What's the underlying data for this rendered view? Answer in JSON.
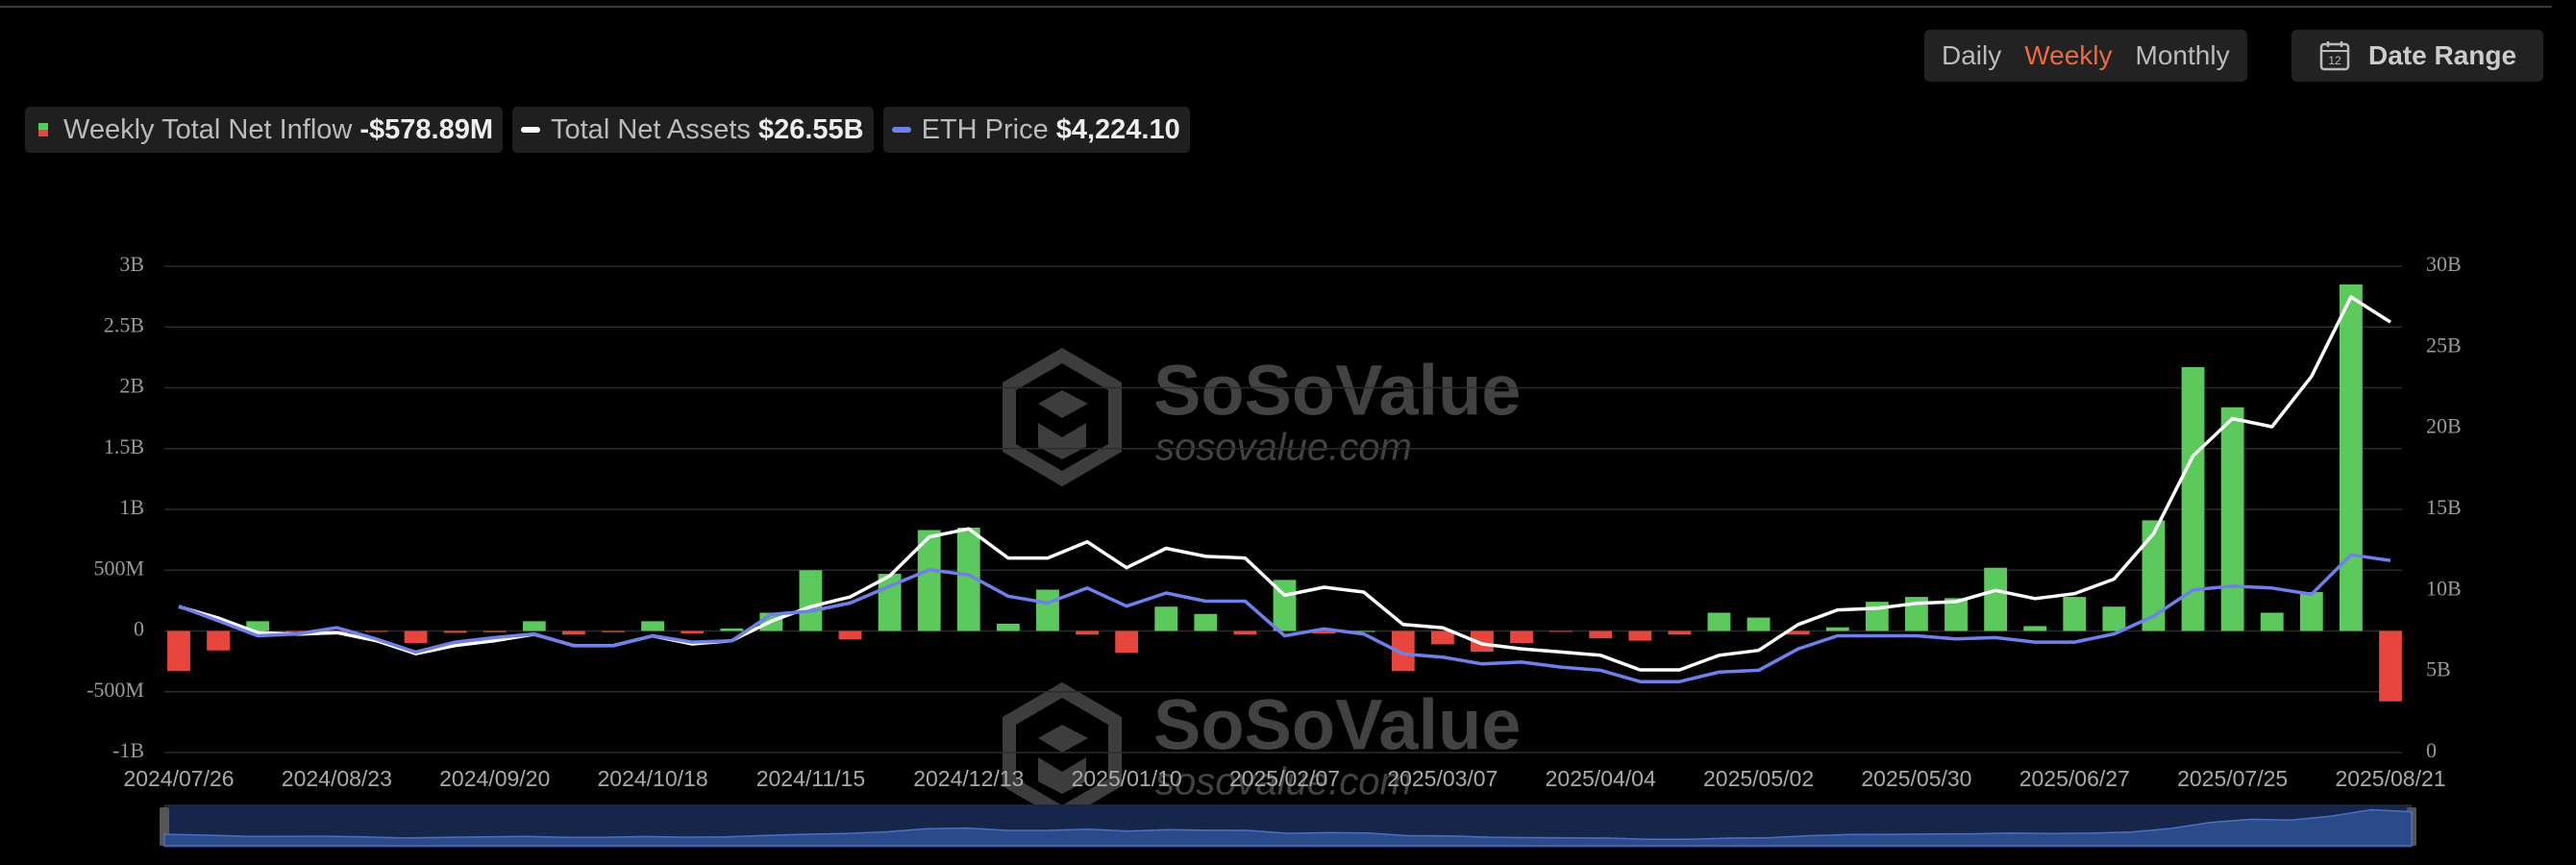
{
  "controls": {
    "periods": [
      "Daily",
      "Weekly",
      "Monthly"
    ],
    "active_period": 1,
    "date_range": "Date Range",
    "date_range_icon": "12"
  },
  "watermark": {
    "name": "SoSoValue",
    "url": "sosovalue.com"
  },
  "chart_data": {
    "type": "bar",
    "categories": [
      "2024/07/26",
      null,
      null,
      null,
      "2024/08/23",
      null,
      null,
      null,
      "2024/09/20",
      null,
      null,
      null,
      "2024/10/18",
      null,
      null,
      null,
      "2024/11/15",
      null,
      null,
      null,
      "2024/12/13",
      null,
      null,
      null,
      "2025/01/10",
      null,
      null,
      null,
      "2025/02/07",
      null,
      null,
      null,
      "2025/03/07",
      null,
      null,
      null,
      "2025/04/04",
      null,
      null,
      null,
      "2025/05/02",
      null,
      null,
      null,
      "2025/05/30",
      null,
      null,
      null,
      "2025/06/27",
      null,
      null,
      null,
      "2025/07/25",
      null,
      null,
      null,
      "2025/08/21"
    ],
    "ylim": [
      -1000,
      3000
    ],
    "yticks": [
      {
        "value": 3000,
        "label": "3B"
      },
      {
        "value": 2500,
        "label": "2.5B"
      },
      {
        "value": 2000,
        "label": "2B"
      },
      {
        "value": 1500,
        "label": "1.5B"
      },
      {
        "value": 1000,
        "label": "1B"
      },
      {
        "value": 500,
        "label": "500M"
      },
      0,
      {
        "value": -500,
        "label": "-500M"
      },
      {
        "value": -1000,
        "label": "-1B"
      }
    ],
    "y2lim": [
      0,
      30
    ],
    "y2ticks": [
      {
        "value": 30,
        "label": "30B"
      },
      {
        "value": 25,
        "label": "25B"
      },
      {
        "value": 20,
        "label": "20B"
      },
      {
        "value": 15,
        "label": "15B"
      },
      {
        "value": 10,
        "label": "10B"
      },
      {
        "value": 5,
        "label": "5B"
      },
      0
    ],
    "y3lim": [
      0,
      10700
    ],
    "grid": true,
    "series": [
      {
        "name": "Weekly Total Net Inflow",
        "legend_value": "-$578.89M",
        "type": "bar",
        "color": "#5cc95c",
        "negative_color": "#e8463d",
        "values": [
          -330,
          -160,
          80,
          -10,
          -30,
          -5,
          -100,
          -15,
          -10,
          80,
          -30,
          -10,
          80,
          -20,
          20,
          150,
          500,
          -70,
          470,
          830,
          850,
          60,
          340,
          -30,
          -180,
          200,
          140,
          -30,
          420,
          -20,
          0,
          -330,
          -110,
          -170,
          -100,
          -5,
          -60,
          -80,
          -30,
          150,
          110,
          -30,
          30,
          240,
          280,
          270,
          520,
          40,
          280,
          200,
          910,
          2170,
          1840,
          150,
          320,
          2850,
          -578.89
        ]
      },
      {
        "name": "Total Net Assets",
        "legend_value": "$26.55B",
        "type": "line",
        "axis": "y2",
        "color": "#ffffff",
        "values": [
          9.0,
          8.3,
          7.4,
          7.3,
          7.4,
          6.9,
          6.1,
          6.6,
          6.9,
          7.3,
          6.6,
          6.6,
          7.2,
          6.7,
          6.9,
          8.1,
          9.0,
          9.6,
          10.9,
          13.3,
          13.8,
          12.0,
          12.0,
          13.0,
          11.4,
          12.6,
          12.1,
          12.0,
          9.7,
          10.2,
          9.9,
          7.9,
          7.7,
          6.7,
          6.4,
          6.2,
          6.0,
          5.1,
          5.1,
          6.0,
          6.3,
          7.9,
          8.8,
          8.9,
          9.2,
          9.3,
          10.0,
          9.5,
          9.8,
          10.7,
          13.5,
          18.3,
          20.6,
          20.1,
          23.2,
          28.1,
          26.55
        ]
      },
      {
        "name": "ETH Price",
        "legend_value": "$4,224.10",
        "type": "line",
        "axis": "y3",
        "color": "#6f80ea",
        "values": [
          3220,
          2900,
          2570,
          2610,
          2750,
          2500,
          2210,
          2430,
          2530,
          2610,
          2350,
          2350,
          2570,
          2430,
          2460,
          3040,
          3110,
          3290,
          3660,
          4020,
          3910,
          3440,
          3290,
          3620,
          3220,
          3510,
          3330,
          3330,
          2570,
          2720,
          2610,
          2170,
          2100,
          1950,
          1990,
          1880,
          1810,
          1560,
          1560,
          1770,
          1810,
          2280,
          2570,
          2570,
          2570,
          2500,
          2530,
          2430,
          2430,
          2610,
          3000,
          3580,
          3660,
          3620,
          3480,
          4350,
          4224.1
        ]
      }
    ]
  }
}
